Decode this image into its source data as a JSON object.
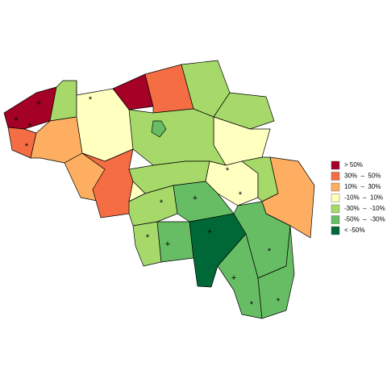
{
  "map": {
    "legend": [
      {
        "label": "> 50%",
        "color": "#a50026"
      },
      {
        "label": "30%  –  50%",
        "color": "#f46d43"
      },
      {
        "label": "10%  –  30%",
        "color": "#fdae61"
      },
      {
        "label": "-10%  –  10%",
        "color": "#ffffbf"
      },
      {
        "label": "-30%  –  -10%",
        "color": "#a6d96a"
      },
      {
        "label": "-50%  –  -30%",
        "color": "#66bd63"
      },
      {
        "label": "< -50%",
        "color": "#006837"
      }
    ],
    "regions": [
      {
        "class": 0,
        "markers": [
          "+",
          "+"
        ]
      },
      {
        "class": 4,
        "markers": []
      },
      {
        "class": 1,
        "markers": [
          "*",
          "*"
        ]
      },
      {
        "class": 2,
        "markers": []
      },
      {
        "class": 3,
        "markers": [
          "*"
        ]
      },
      {
        "class": 0,
        "markers": []
      },
      {
        "class": 1,
        "markers": []
      },
      {
        "class": 4,
        "markers": []
      },
      {
        "class": 4,
        "markers": []
      },
      {
        "class": 3,
        "markers": []
      },
      {
        "class": 4,
        "markers": []
      },
      {
        "class": 2,
        "markers": []
      },
      {
        "class": 1,
        "markers": []
      },
      {
        "class": 4,
        "markers": []
      },
      {
        "class": 3,
        "markers": []
      },
      {
        "class": 4,
        "markers": [
          "*"
        ]
      },
      {
        "class": 3,
        "markers": [
          "*",
          "*"
        ]
      },
      {
        "class": 4,
        "markers": []
      },
      {
        "class": 2,
        "markers": []
      },
      {
        "class": 5,
        "markers": [
          "+"
        ]
      },
      {
        "class": 4,
        "markers": [
          "*"
        ]
      },
      {
        "class": 5,
        "markers": [
          "+"
        ]
      },
      {
        "class": 6,
        "markers": [
          "+"
        ]
      },
      {
        "class": 5,
        "markers": [
          "*"
        ]
      },
      {
        "class": 5,
        "markers": [
          "+",
          "*"
        ]
      },
      {
        "class": 5,
        "markers": [
          "*"
        ]
      },
      {
        "class": 5,
        "markers": []
      }
    ]
  }
}
